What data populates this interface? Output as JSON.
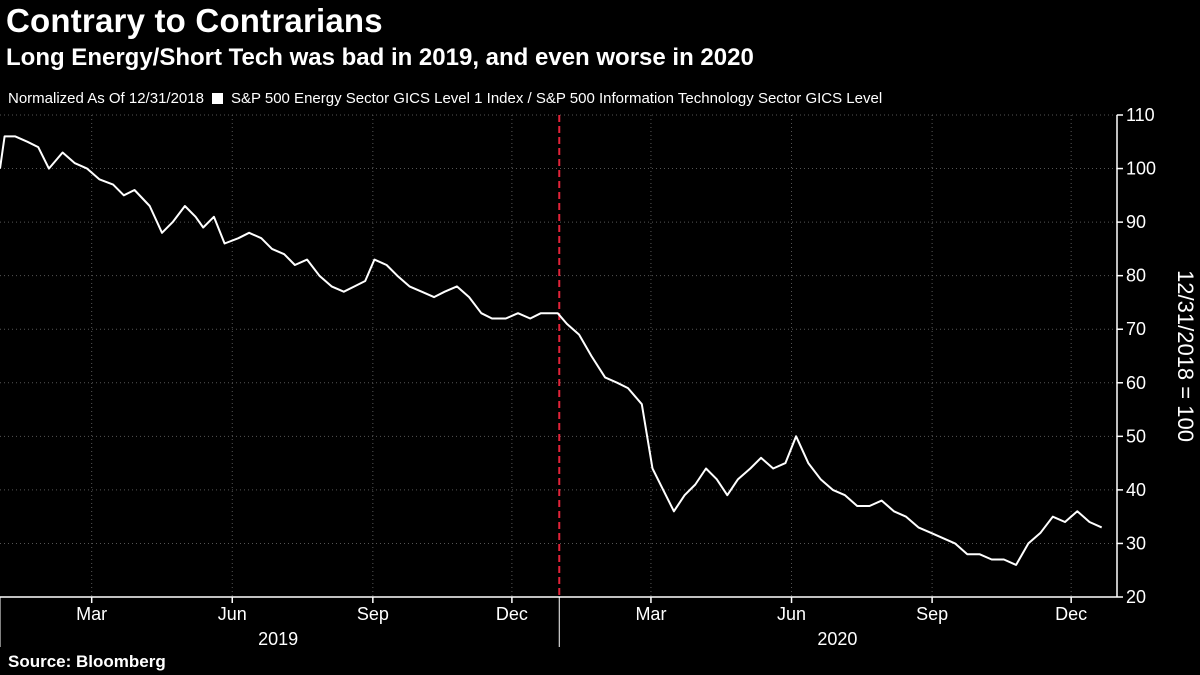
{
  "title": "Contrary to Contrarians",
  "subtitle": "Long Energy/Short Tech was bad in 2019, and even worse in 2020",
  "legend": {
    "normalized": "Normalized As Of 12/31/2018",
    "series_label": "S&P 500 Energy Sector GICS Level 1 Index / S&P 500 Information Technology Sector GICS Level"
  },
  "source": "Source: Bloomberg",
  "colors": {
    "background": "#000000",
    "line": "#ffffff",
    "grid": "#555555",
    "divider": "#e2233a"
  },
  "chart_data": {
    "type": "line",
    "ylabel": "12/31/2018 = 100",
    "ylim": [
      20,
      110
    ],
    "yticks": [
      20,
      30,
      40,
      50,
      60,
      70,
      80,
      90,
      100,
      110
    ],
    "xlim": [
      "2018-12-31",
      "2020-12-31"
    ],
    "xticks": [
      {
        "date": "2019-03-01",
        "label": "Mar"
      },
      {
        "date": "2019-06-01",
        "label": "Jun"
      },
      {
        "date": "2019-09-01",
        "label": "Sep"
      },
      {
        "date": "2019-12-01",
        "label": "Dec"
      },
      {
        "date": "2020-03-01",
        "label": "Mar"
      },
      {
        "date": "2020-06-01",
        "label": "Jun"
      },
      {
        "date": "2020-09-01",
        "label": "Sep"
      },
      {
        "date": "2020-12-01",
        "label": "Dec"
      }
    ],
    "years": [
      {
        "label": "2019",
        "center": "2019-07-01"
      },
      {
        "label": "2020",
        "center": "2020-07-01"
      }
    ],
    "vline": "2020-01-01",
    "grid": true,
    "series": [
      {
        "points": [
          [
            "2018-12-31",
            100
          ],
          [
            "2019-01-03",
            106
          ],
          [
            "2019-01-10",
            106
          ],
          [
            "2019-01-18",
            105
          ],
          [
            "2019-01-25",
            104
          ],
          [
            "2019-02-01",
            100
          ],
          [
            "2019-02-10",
            103
          ],
          [
            "2019-02-18",
            101
          ],
          [
            "2019-02-26",
            100
          ],
          [
            "2019-03-06",
            98
          ],
          [
            "2019-03-15",
            97
          ],
          [
            "2019-03-22",
            95
          ],
          [
            "2019-03-29",
            96
          ],
          [
            "2019-04-08",
            93
          ],
          [
            "2019-04-16",
            88
          ],
          [
            "2019-04-23",
            90
          ],
          [
            "2019-05-01",
            93
          ],
          [
            "2019-05-08",
            91
          ],
          [
            "2019-05-13",
            89
          ],
          [
            "2019-05-20",
            91
          ],
          [
            "2019-05-27",
            86
          ],
          [
            "2019-06-05",
            87
          ],
          [
            "2019-06-12",
            88
          ],
          [
            "2019-06-20",
            87
          ],
          [
            "2019-06-27",
            85
          ],
          [
            "2019-07-05",
            84
          ],
          [
            "2019-07-12",
            82
          ],
          [
            "2019-07-20",
            83
          ],
          [
            "2019-07-28",
            80
          ],
          [
            "2019-08-05",
            78
          ],
          [
            "2019-08-13",
            77
          ],
          [
            "2019-08-20",
            78
          ],
          [
            "2019-08-27",
            79
          ],
          [
            "2019-09-02",
            83
          ],
          [
            "2019-09-10",
            82
          ],
          [
            "2019-09-17",
            80
          ],
          [
            "2019-09-25",
            78
          ],
          [
            "2019-10-03",
            77
          ],
          [
            "2019-10-11",
            76
          ],
          [
            "2019-10-18",
            77
          ],
          [
            "2019-10-26",
            78
          ],
          [
            "2019-11-03",
            76
          ],
          [
            "2019-11-11",
            73
          ],
          [
            "2019-11-18",
            72
          ],
          [
            "2019-11-27",
            72
          ],
          [
            "2019-12-05",
            73
          ],
          [
            "2019-12-13",
            72
          ],
          [
            "2019-12-20",
            73
          ],
          [
            "2019-12-31",
            73
          ],
          [
            "2020-01-06",
            71
          ],
          [
            "2020-01-14",
            69
          ],
          [
            "2020-01-22",
            65
          ],
          [
            "2020-01-31",
            61
          ],
          [
            "2020-02-08",
            60
          ],
          [
            "2020-02-15",
            59
          ],
          [
            "2020-02-24",
            56
          ],
          [
            "2020-03-02",
            44
          ],
          [
            "2020-03-09",
            40
          ],
          [
            "2020-03-16",
            36
          ],
          [
            "2020-03-23",
            39
          ],
          [
            "2020-03-30",
            41
          ],
          [
            "2020-04-06",
            44
          ],
          [
            "2020-04-13",
            42
          ],
          [
            "2020-04-20",
            39
          ],
          [
            "2020-04-27",
            42
          ],
          [
            "2020-05-05",
            44
          ],
          [
            "2020-05-12",
            46
          ],
          [
            "2020-05-20",
            44
          ],
          [
            "2020-05-28",
            45
          ],
          [
            "2020-06-04",
            50
          ],
          [
            "2020-06-12",
            45
          ],
          [
            "2020-06-20",
            42
          ],
          [
            "2020-06-28",
            40
          ],
          [
            "2020-07-06",
            39
          ],
          [
            "2020-07-14",
            37
          ],
          [
            "2020-07-22",
            37
          ],
          [
            "2020-07-30",
            38
          ],
          [
            "2020-08-07",
            36
          ],
          [
            "2020-08-15",
            35
          ],
          [
            "2020-08-23",
            33
          ],
          [
            "2020-08-31",
            32
          ],
          [
            "2020-09-08",
            31
          ],
          [
            "2020-09-16",
            30
          ],
          [
            "2020-09-24",
            28
          ],
          [
            "2020-10-02",
            28
          ],
          [
            "2020-10-10",
            27
          ],
          [
            "2020-10-18",
            27
          ],
          [
            "2020-10-26",
            26
          ],
          [
            "2020-11-03",
            30
          ],
          [
            "2020-11-11",
            32
          ],
          [
            "2020-11-19",
            35
          ],
          [
            "2020-11-27",
            34
          ],
          [
            "2020-12-05",
            36
          ],
          [
            "2020-12-13",
            34
          ],
          [
            "2020-12-21",
            33
          ]
        ]
      }
    ]
  }
}
